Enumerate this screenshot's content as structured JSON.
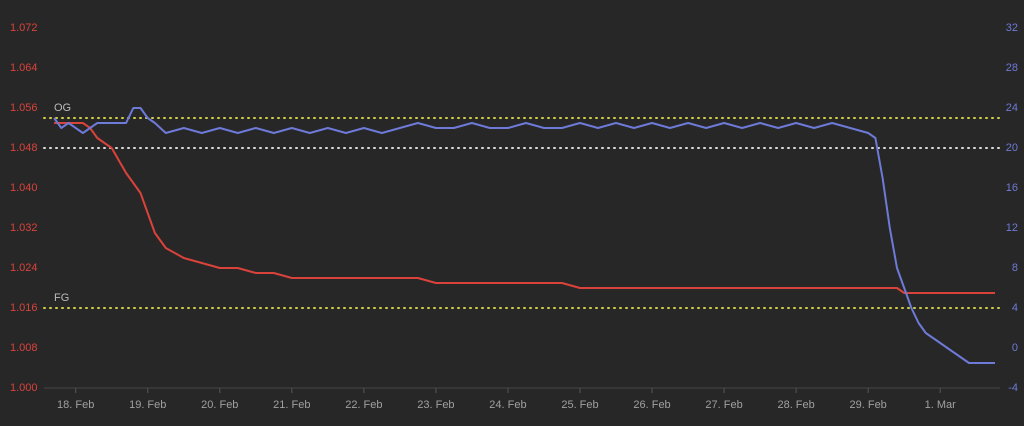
{
  "chart_data": {
    "type": "line",
    "x": [
      -0.3,
      -0.2,
      -0.1,
      0,
      0.1,
      0.2,
      0.3,
      0.5,
      0.7,
      0.8,
      0.9,
      1.0,
      1.1,
      1.25,
      1.5,
      1.75,
      2,
      2.25,
      2.5,
      2.75,
      3,
      3.25,
      3.5,
      3.75,
      4,
      4.25,
      4.5,
      4.75,
      5,
      5.25,
      5.5,
      5.75,
      6,
      6.25,
      6.5,
      6.75,
      7,
      7.25,
      7.5,
      7.75,
      8,
      8.25,
      8.5,
      8.75,
      9,
      9.25,
      9.5,
      9.75,
      10,
      10.25,
      10.5,
      10.75,
      11,
      11.1,
      11.2,
      11.3,
      11.4,
      11.5,
      11.6,
      11.7,
      11.8,
      11.9,
      12,
      12.1,
      12.2,
      12.3,
      12.4,
      12.5,
      12.6,
      12.76
    ],
    "xlim": [
      -0.44,
      12.83
    ],
    "xticks": [
      {
        "value": 0,
        "label": "18. Feb"
      },
      {
        "value": 1,
        "label": "19. Feb"
      },
      {
        "value": 2,
        "label": "20. Feb"
      },
      {
        "value": 3,
        "label": "21. Feb"
      },
      {
        "value": 4,
        "label": "22. Feb"
      },
      {
        "value": 5,
        "label": "23. Feb"
      },
      {
        "value": 6,
        "label": "24. Feb"
      },
      {
        "value": 7,
        "label": "25. Feb"
      },
      {
        "value": 8,
        "label": "26. Feb"
      },
      {
        "value": 9,
        "label": "27. Feb"
      },
      {
        "value": 10,
        "label": "28. Feb"
      },
      {
        "value": 11,
        "label": "29. Feb"
      },
      {
        "value": 12,
        "label": "1. Mar"
      }
    ],
    "ylim": [
      1,
      1.072
    ],
    "yticks": [
      {
        "value": 1,
        "label": "1.000"
      },
      1.008,
      1.016,
      {
        "value": 1.024,
        "label": "1.024"
      },
      1.032,
      {
        "value": 1.04,
        "label": "1.040"
      },
      1.048,
      1.056,
      1.064,
      1.072
    ],
    "y2lim": [
      -4,
      32
    ],
    "y2ticks": [
      -4,
      0,
      4,
      8,
      12,
      16,
      20,
      24,
      28,
      32
    ],
    "series": [
      {
        "color": "#d9433b",
        "values": [
          1.053,
          1.053,
          1.053,
          1.053,
          1.053,
          1.052,
          1.05,
          1.048,
          1.043,
          1.041,
          1.039,
          1.035,
          1.031,
          1.028,
          1.026,
          1.025,
          1.024,
          1.024,
          1.023,
          1.023,
          1.022,
          1.022,
          1.022,
          1.022,
          1.022,
          1.022,
          1.022,
          1.022,
          1.021,
          1.021,
          1.021,
          1.021,
          1.021,
          1.021,
          1.021,
          1.021,
          1.02,
          1.02,
          1.02,
          1.02,
          1.02,
          1.02,
          1.02,
          1.02,
          1.02,
          1.02,
          1.02,
          1.02,
          1.02,
          1.02,
          1.02,
          1.02,
          1.02,
          1.02,
          1.02,
          1.02,
          1.02,
          1.019,
          1.019,
          1.019,
          1.019,
          1.019,
          1.019,
          1.019,
          1.019,
          1.019,
          1.019,
          1.019,
          1.019,
          1.019
        ]
      },
      {
        "color": "#6e7ad8",
        "axis": "y2",
        "values": [
          23,
          22,
          22.5,
          22,
          21.5,
          22,
          22.5,
          22.5,
          22.5,
          24,
          24,
          23,
          22.5,
          21.5,
          22,
          21.5,
          22,
          21.5,
          22,
          21.5,
          22,
          21.5,
          22,
          21.5,
          22,
          21.5,
          22,
          22.5,
          22,
          22,
          22.5,
          22,
          22,
          22.5,
          22,
          22,
          22.5,
          22,
          22.5,
          22,
          22.5,
          22,
          22.5,
          22,
          22.5,
          22,
          22.5,
          22,
          22.5,
          22,
          22.5,
          22,
          21.5,
          21,
          17,
          12,
          8,
          6,
          4,
          2.5,
          1.5,
          1,
          0.5,
          0,
          -0.5,
          -1,
          -1.5,
          -1.5,
          -1.5,
          -1.5
        ]
      }
    ],
    "reference_lines": [
      {
        "label": "OG",
        "value": 1.054,
        "color": "#d2cf48"
      },
      {
        "value": 20,
        "axis": "y2",
        "color": "#dcdcdc"
      },
      {
        "label": "FG",
        "value": 1.016,
        "color": "#d2cf48"
      }
    ]
  }
}
